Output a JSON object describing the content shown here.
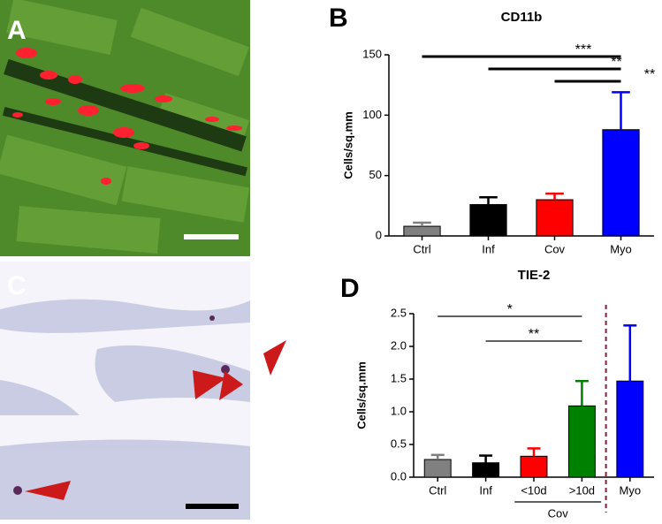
{
  "panel_labels": [
    "A",
    "B",
    "C",
    "D"
  ],
  "chart_data": [
    {
      "type": "bar",
      "title": "CD11b",
      "y_label": "Cells/sq.mm",
      "categories": [
        "Ctrl",
        "Inf",
        "Cov",
        "Myo"
      ],
      "values": [
        8,
        26,
        30,
        88
      ],
      "errors": [
        3,
        6,
        5,
        31
      ],
      "colors": [
        "#808080",
        "#000000",
        "#ff0000",
        "#0000ff"
      ],
      "ylim": [
        0,
        150
      ],
      "yticks": [
        0,
        50,
        100,
        150
      ],
      "annotations": [
        {
          "from": 0,
          "to": 3,
          "label": "***"
        },
        {
          "from": 1,
          "to": 3,
          "label": "**"
        },
        {
          "from": 2,
          "to": 3,
          "label": "**"
        }
      ]
    },
    {
      "type": "bar",
      "title": "TIE-2",
      "y_label": "Cells/sq.mm",
      "categories": [
        "Ctrl",
        "Inf",
        "<10d",
        ">10d",
        "Myo"
      ],
      "values": [
        0.27,
        0.22,
        0.32,
        1.09,
        1.47
      ],
      "errors": [
        0.07,
        0.11,
        0.12,
        0.38,
        0.85
      ],
      "colors": [
        "#808080",
        "#000000",
        "#ff0000",
        "#008000",
        "#0000ff"
      ],
      "ylim": [
        0,
        2.5
      ],
      "yticks": [
        {
          "value": 0,
          "label": "0.0"
        },
        0.5,
        {
          "value": 1,
          "label": "1.0"
        },
        1.5,
        {
          "value": 2,
          "label": "2.0"
        },
        2.5
      ],
      "group_label": "Cov",
      "annotations": [
        {
          "from": 0,
          "to": 3,
          "label": "*"
        },
        {
          "from": 1,
          "to": 3,
          "label": "**"
        }
      ]
    }
  ]
}
